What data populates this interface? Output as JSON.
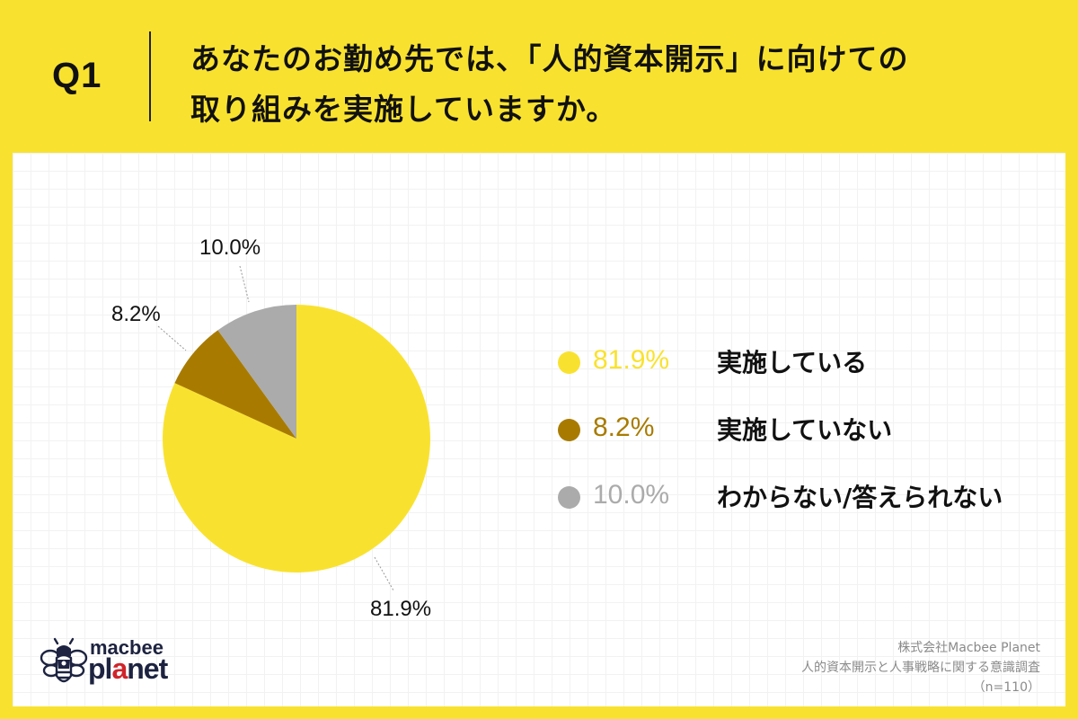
{
  "header": {
    "question_number": "Q1",
    "title_line1": "あなたのお勤め先では、「人的資本開示」に向けての",
    "title_line2": "取り組みを実施していますか。"
  },
  "colors": {
    "background": "#F9E22F",
    "slice_implemented": "#F9E22F",
    "slice_not_implemented": "#A87B00",
    "slice_unknown": "#ABABAB"
  },
  "chart_data": {
    "type": "pie",
    "title": "あなたのお勤め先では、「人的資本開示」に向けての取り組みを実施していますか。",
    "categories": [
      "実施している",
      "実施していない",
      "わからない/答えられない"
    ],
    "values": [
      81.9,
      8.2,
      10.0
    ],
    "unit": "%",
    "start_angle": "12 o'clock",
    "direction": "clockwise",
    "data_labels": [
      "81.9%",
      "8.2%",
      "10.0%"
    ],
    "legend_position": "right",
    "sample_size": "n=110"
  },
  "pie_labels": {
    "implemented": "81.9%",
    "not_implemented": "8.2%",
    "unknown": "10.0%"
  },
  "legend": [
    {
      "pct": "81.9%",
      "label": "実施している",
      "color": "#F9E22F"
    },
    {
      "pct": "8.2%",
      "label": "実施していない",
      "color": "#A87B00"
    },
    {
      "pct": "10.0%",
      "label": "わからない/答えられない",
      "color": "#ABABAB"
    }
  ],
  "logo": {
    "line1": "macbee",
    "line2_a": "pl",
    "line2_b": "a",
    "line2_c": "net"
  },
  "source": {
    "company": "株式会社Macbee Planet",
    "survey": "人的資本開示と人事戦略に関する意識調査",
    "sample": "（n=110）"
  }
}
